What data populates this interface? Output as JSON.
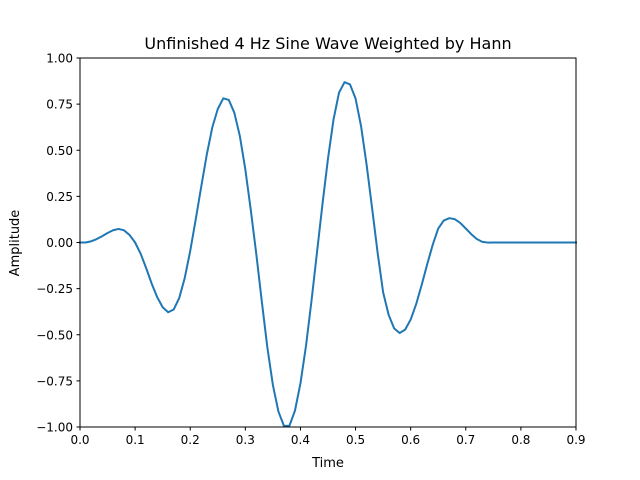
{
  "chart_data": {
    "type": "line",
    "title": "Unfinished 4 Hz Sine Wave Weighted by Hann",
    "xlabel": "Time",
    "ylabel": "Amplitude",
    "xlim": [
      0.0,
      0.9
    ],
    "ylim": [
      -1.0,
      1.0
    ],
    "xticks": [
      "0.0",
      "0.1",
      "0.2",
      "0.3",
      "0.4",
      "0.5",
      "0.6",
      "0.7",
      "0.8",
      "0.9"
    ],
    "yticks": [
      "−1.00",
      "−0.75",
      "−0.50",
      "−0.25",
      "0.00",
      "0.25",
      "0.50",
      "0.75",
      "1.00"
    ],
    "grid": false,
    "series": [
      {
        "color": "#1f77b4",
        "x": [
          0.0,
          0.01,
          0.02,
          0.03,
          0.04,
          0.05,
          0.06,
          0.07,
          0.08,
          0.09,
          0.1,
          0.11,
          0.12,
          0.13,
          0.14,
          0.15,
          0.16,
          0.17,
          0.18,
          0.19,
          0.2,
          0.21,
          0.22,
          0.23,
          0.24,
          0.25,
          0.26,
          0.27,
          0.28,
          0.29,
          0.3,
          0.31,
          0.32,
          0.33,
          0.34,
          0.35,
          0.36,
          0.37,
          0.38,
          0.39,
          0.4,
          0.41,
          0.42,
          0.43,
          0.44,
          0.45,
          0.46,
          0.47,
          0.48,
          0.49,
          0.5,
          0.51,
          0.52,
          0.53,
          0.54,
          0.55,
          0.56,
          0.57,
          0.58,
          0.59,
          0.6,
          0.61,
          0.62,
          0.63,
          0.64,
          0.65,
          0.66,
          0.67,
          0.68,
          0.69,
          0.7,
          0.71,
          0.72,
          0.73,
          0.74,
          0.75,
          0.76,
          0.77,
          0.78,
          0.79,
          0.8,
          0.81,
          0.82,
          0.83,
          0.84,
          0.85,
          0.86,
          0.87,
          0.88,
          0.89,
          0.9
        ],
        "y": [
          0.0,
          0.0,
          0.0063,
          0.018,
          0.0341,
          0.0514,
          0.0663,
          0.0736,
          0.0659,
          0.0404,
          0.0,
          -0.0607,
          -0.1382,
          -0.2223,
          -0.2958,
          -0.3509,
          -0.3781,
          -0.3633,
          -0.3012,
          -0.1929,
          -0.0458,
          0.1253,
          0.3029,
          0.4758,
          0.6232,
          0.7236,
          0.7814,
          0.7728,
          0.7036,
          0.5778,
          0.3959,
          0.1742,
          -0.0654,
          -0.3223,
          -0.5696,
          -0.7725,
          -0.9156,
          -0.9941,
          -0.9934,
          -0.9119,
          -0.7638,
          -0.5615,
          -0.3174,
          -0.0543,
          0.2084,
          0.4555,
          0.6664,
          0.8119,
          0.8689,
          0.8565,
          0.7803,
          0.6305,
          0.4227,
          0.1862,
          -0.0547,
          -0.2696,
          -0.3917,
          -0.4653,
          -0.4903,
          -0.4724,
          -0.4177,
          -0.3339,
          -0.2298,
          -0.1179,
          -0.0125,
          0.0754,
          0.1188,
          0.1317,
          0.1266,
          0.1058,
          0.0759,
          0.0448,
          0.0189,
          0.0036,
          -0.0004,
          0.0,
          0.0,
          0.0,
          0.0,
          0.0,
          0.0,
          0.0,
          0.0,
          0.0,
          0.0,
          0.0,
          0.0,
          0.0,
          0.0,
          0.0,
          0.0
        ]
      }
    ]
  }
}
